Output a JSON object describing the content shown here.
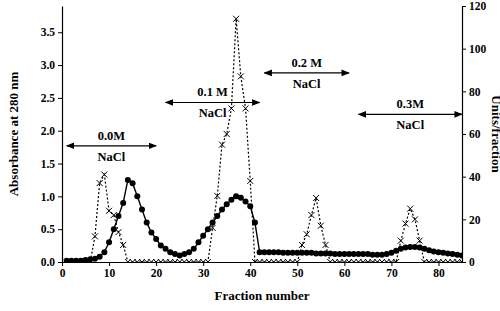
{
  "chart_data": {
    "type": "line",
    "xlabel": "Fraction number",
    "ylabel": "Absorbance at 280 nm",
    "y2label": "Units/fraction",
    "xlim": [
      0,
      85
    ],
    "xticks": [
      0,
      10,
      20,
      30,
      40,
      50,
      60,
      70,
      80
    ],
    "ylim": [
      0,
      3.9
    ],
    "yticks": [
      {
        "value": 0,
        "label": "0.0"
      },
      {
        "value": 0.5,
        "label": "0.5"
      },
      {
        "value": 1,
        "label": "1.0"
      },
      {
        "value": 1.5,
        "label": "1.5"
      },
      {
        "value": 2,
        "label": "2.0"
      },
      {
        "value": 2.5,
        "label": "2.5"
      },
      {
        "value": 3,
        "label": "3.0"
      },
      {
        "value": 3.5,
        "label": "3.5"
      }
    ],
    "y2lim": [
      0,
      120
    ],
    "y2ticks": [
      0,
      20,
      40,
      60,
      80,
      100,
      120
    ],
    "grid": false,
    "x": [
      1,
      2,
      3,
      4,
      5,
      6,
      7,
      8,
      9,
      10,
      11,
      12,
      13,
      14,
      15,
      16,
      17,
      18,
      19,
      20,
      21,
      22,
      23,
      24,
      25,
      26,
      27,
      28,
      29,
      30,
      31,
      32,
      33,
      34,
      35,
      36,
      37,
      38,
      39,
      40,
      41,
      42,
      43,
      44,
      45,
      46,
      47,
      48,
      49,
      50,
      51,
      52,
      53,
      54,
      55,
      56,
      57,
      58,
      59,
      60,
      61,
      62,
      63,
      64,
      65,
      66,
      67,
      68,
      69,
      70,
      71,
      72,
      73,
      74,
      75,
      76,
      77,
      78,
      79,
      80,
      81,
      82,
      83,
      84,
      85
    ],
    "series": [
      {
        "color": "#000000",
        "marker": "circle",
        "line_style": "solid",
        "values": [
          0.02,
          0.02,
          0.02,
          0.02,
          0.03,
          0.04,
          0.05,
          0.08,
          0.15,
          0.3,
          0.5,
          0.7,
          0.9,
          1.25,
          1.2,
          1.0,
          0.8,
          0.6,
          0.45,
          0.35,
          0.25,
          0.2,
          0.15,
          0.12,
          0.1,
          0.12,
          0.15,
          0.2,
          0.3,
          0.4,
          0.5,
          0.6,
          0.7,
          0.8,
          0.88,
          0.95,
          1.0,
          0.98,
          0.92,
          0.85,
          0.6,
          0.15,
          0.15,
          0.15,
          0.15,
          0.15,
          0.14,
          0.14,
          0.14,
          0.14,
          0.14,
          0.14,
          0.14,
          0.13,
          0.13,
          0.13,
          0.13,
          0.12,
          0.12,
          0.12,
          0.12,
          0.12,
          0.12,
          0.12,
          0.12,
          0.11,
          0.11,
          0.11,
          0.12,
          0.14,
          0.17,
          0.2,
          0.22,
          0.23,
          0.23,
          0.22,
          0.2,
          0.18,
          0.16,
          0.15,
          0.14,
          0.13,
          0.12,
          0.11,
          0.1
        ]
      },
      {
        "color": "#000000",
        "marker": "x",
        "line_style": "dotted",
        "axis": "y2",
        "values": [
          0,
          0,
          0,
          0,
          0,
          0,
          12,
          37,
          41,
          24,
          22,
          14,
          8,
          0,
          0,
          0,
          0,
          0,
          0,
          0,
          0,
          0,
          0,
          0,
          0,
          0,
          0,
          0,
          0,
          0,
          0,
          16,
          31,
          55,
          60,
          72,
          114,
          87,
          72,
          38,
          0,
          0,
          0,
          0,
          0,
          0,
          0,
          0,
          0,
          0,
          8,
          13,
          22,
          30,
          17,
          8,
          0,
          0,
          0,
          0,
          0,
          0,
          0,
          0,
          0,
          0,
          0,
          0,
          0,
          0,
          0,
          10,
          18,
          25,
          20,
          10,
          0,
          0,
          0,
          0,
          0,
          0,
          0,
          0,
          0
        ]
      }
    ],
    "annotations": [
      {
        "text": [
          "0.0M",
          "NaCl"
        ],
        "x": [
          1,
          20
        ],
        "y": 1.77
      },
      {
        "text": [
          "0.1 M",
          "NaCl"
        ],
        "x": [
          22,
          42
        ],
        "y": 2.43
      },
      {
        "text": [
          "0.2 M",
          "NaCl"
        ],
        "x": [
          43,
          61
        ],
        "y": 2.88
      },
      {
        "text": [
          "0.3M",
          "NaCl"
        ],
        "x": [
          63,
          85
        ],
        "y": 2.25
      }
    ]
  }
}
